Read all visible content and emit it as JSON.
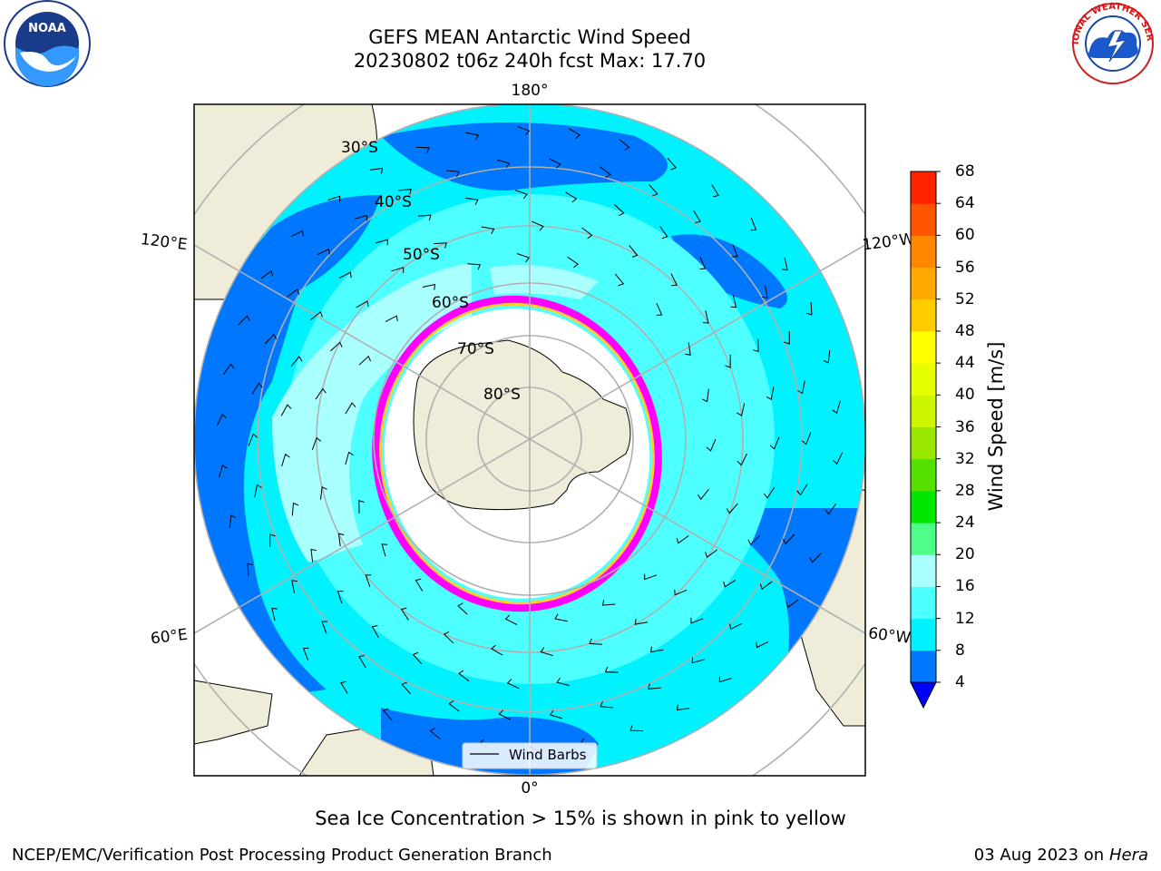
{
  "title": {
    "line1": "GEFS MEAN Antarctic Wind Speed",
    "line2": "20230802 t06z 240h fcst   Max: 17.70"
  },
  "map": {
    "projection": "south polar stereographic",
    "longitude_labels": [
      "180°",
      "120°E",
      "120°W",
      "60°E",
      "60°W",
      "0°"
    ],
    "latitude_labels": [
      "30°S",
      "40°S",
      "50°S",
      "60°S",
      "70°S",
      "80°S"
    ],
    "legend_label": "Wind Barbs",
    "land_color": "#efedd9",
    "ocean_colors": [
      "#0077ff",
      "#00f2ff",
      "#4dffff",
      "#aaffff"
    ],
    "sea_ice_colors": [
      "#ff00ff",
      "#ff66aa",
      "#ffcc33"
    ]
  },
  "colorbar": {
    "label": "Wind Speed [m/s]",
    "ticks": [
      "4",
      "8",
      "12",
      "16",
      "20",
      "24",
      "28",
      "32",
      "36",
      "40",
      "44",
      "48",
      "52",
      "56",
      "60",
      "64",
      "68"
    ],
    "levels": [
      4,
      8,
      12,
      16,
      20,
      24,
      28,
      32,
      36,
      40,
      44,
      48,
      52,
      56,
      60,
      64,
      68
    ],
    "colors": [
      "#0077ff",
      "#00f2ff",
      "#4dffff",
      "#aaffff",
      "#4dff88",
      "#00e600",
      "#55e000",
      "#99e600",
      "#ccf500",
      "#e6ff00",
      "#ffff00",
      "#ffcc00",
      "#ffaa00",
      "#ff8800",
      "#ff5500",
      "#ff2200"
    ],
    "under_color": "#0000ff"
  },
  "note": "Sea Ice Concentration > 15% is shown in pink to yellow",
  "footer": {
    "left": "NCEP/EMC/Verification Post Processing Product Generation Branch",
    "right_date": "03 Aug 2023 on",
    "right_machine": "Hera"
  },
  "logos": {
    "noaa_text": "NOAA",
    "nws_text": "NATIONAL WEATHER SERVICE"
  }
}
